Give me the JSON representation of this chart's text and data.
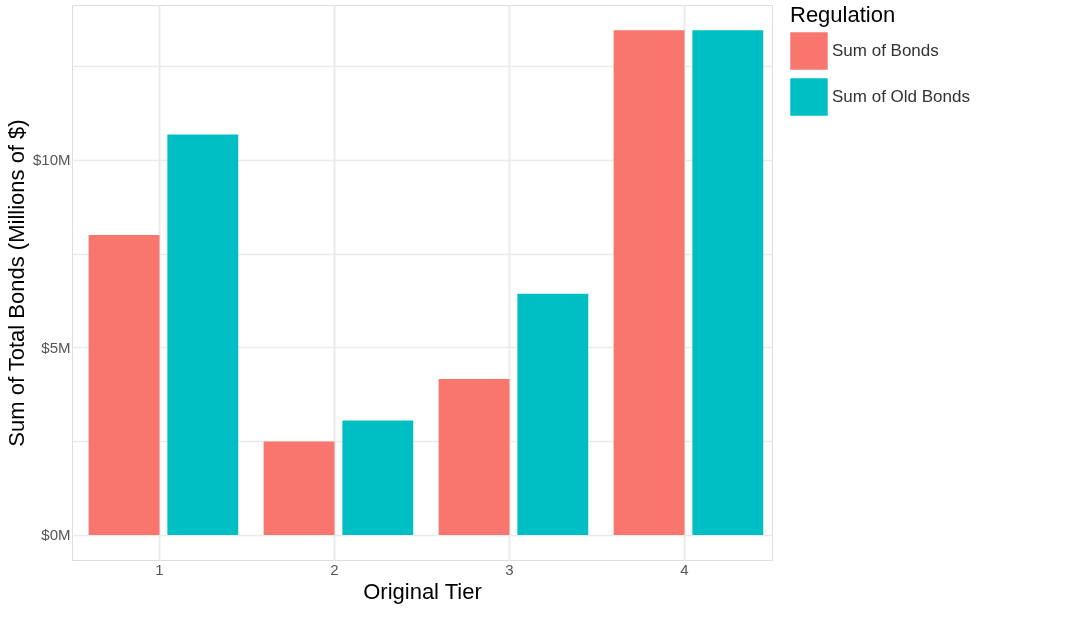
{
  "chart_data": {
    "type": "bar",
    "xlabel": "Original Tier",
    "ylabel": "Sum of Total Bonds (Millions of $)",
    "legend_title": "Regulation",
    "categories": [
      "1",
      "2",
      "3",
      "4"
    ],
    "series": [
      {
        "name": "Sum of Bonds",
        "color": "#f8766d",
        "values": [
          8.0,
          2.49,
          4.16,
          13.46
        ]
      },
      {
        "name": "Sum of Old Bonds",
        "color": "#00bfc4",
        "values": [
          10.68,
          3.05,
          6.43,
          13.46
        ]
      }
    ],
    "ylim": [
      -0.67,
      14.13
    ],
    "yticks": [
      {
        "value": 0,
        "label": "$0M"
      },
      {
        "value": 2.5,
        "label": null
      },
      {
        "value": 5,
        "label": "$5M"
      },
      {
        "value": 7.5,
        "label": null
      },
      {
        "value": 10,
        "label": "$10M"
      },
      {
        "value": 12.5,
        "label": null
      }
    ],
    "grid": true,
    "legend": "right"
  }
}
